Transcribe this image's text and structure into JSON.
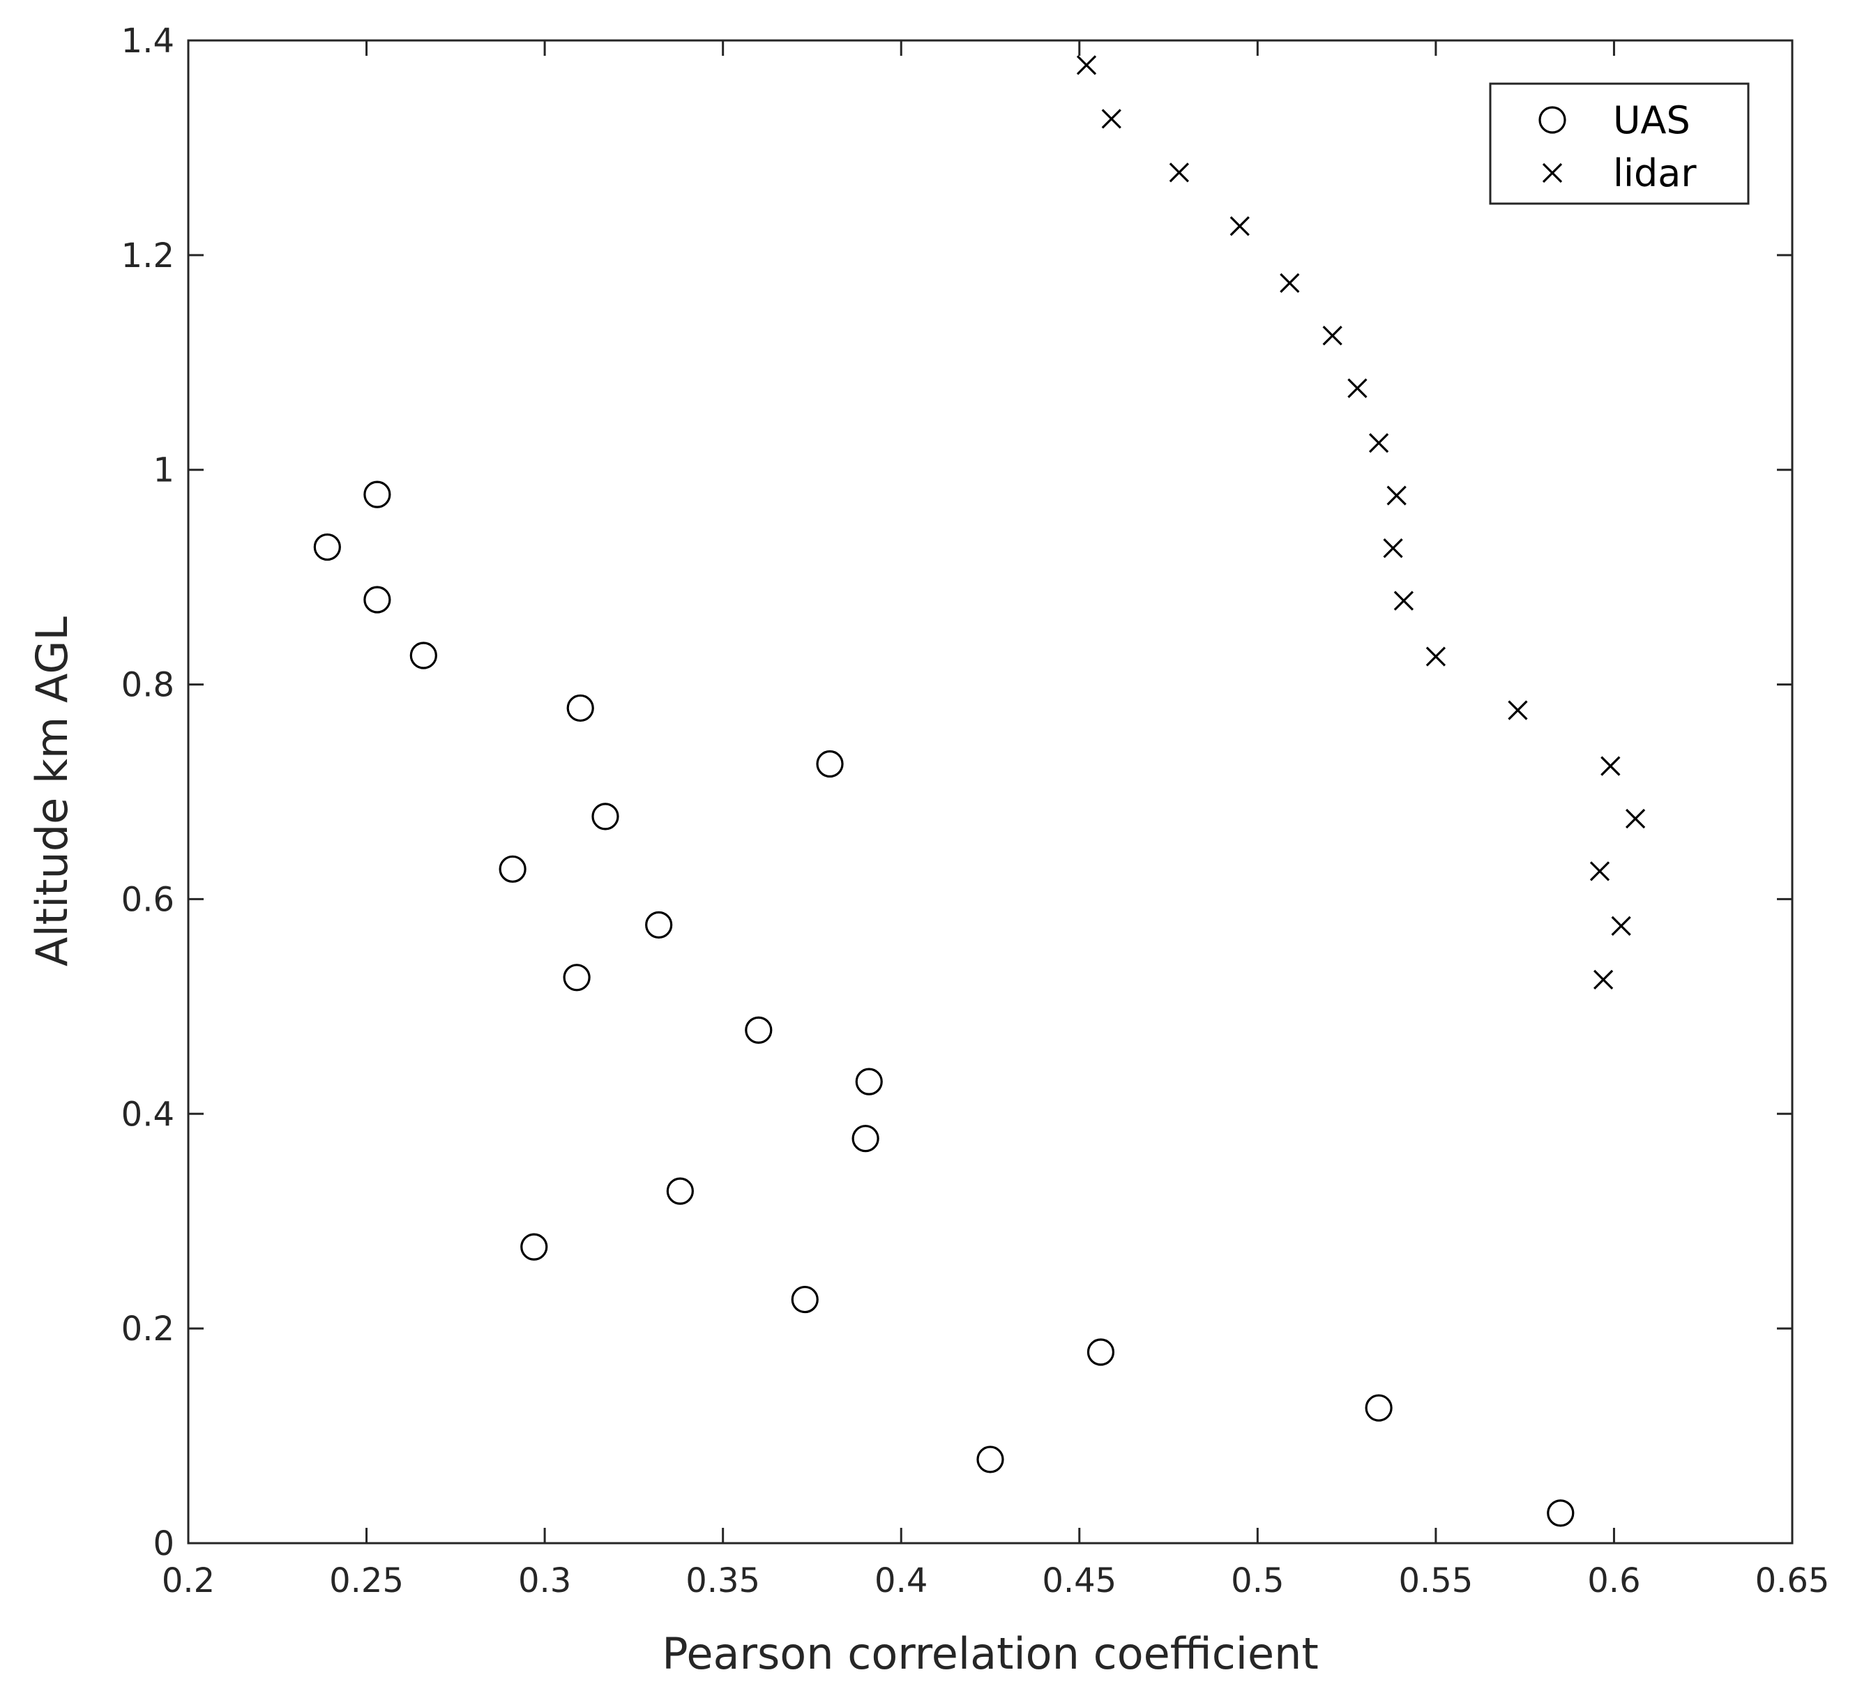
{
  "chart_data": {
    "type": "scatter",
    "xlabel": "Pearson correlation coefficient",
    "ylabel": "Altitude km AGL",
    "xlim": [
      0.2,
      0.65
    ],
    "ylim": [
      0,
      1.4
    ],
    "xticks": [
      0.2,
      0.25,
      0.3,
      0.35,
      0.4,
      0.45,
      0.5,
      0.55,
      0.6,
      0.65
    ],
    "xtick_labels": [
      "0.2",
      "0.25",
      "0.3",
      "0.35",
      "0.4",
      "0.45",
      "0.5",
      "0.55",
      "0.6",
      "0.65"
    ],
    "yticks": [
      0,
      0.2,
      0.4,
      0.6,
      0.8,
      1,
      1.2,
      1.4
    ],
    "ytick_labels": [
      "0",
      "0.2",
      "0.4",
      "0.6",
      "0.8",
      "1",
      "1.2",
      "1.4"
    ],
    "grid": false,
    "legend_position": "top-right",
    "series": [
      {
        "name": "UAS",
        "marker": "circle",
        "x": [
          0.585,
          0.425,
          0.534,
          0.456,
          0.373,
          0.297,
          0.338,
          0.39,
          0.391,
          0.36,
          0.309,
          0.332,
          0.291,
          0.317,
          0.38,
          0.31,
          0.266,
          0.253,
          0.239,
          0.253
        ],
        "y": [
          0.028,
          0.078,
          0.126,
          0.178,
          0.227,
          0.276,
          0.328,
          0.377,
          0.43,
          0.478,
          0.527,
          0.576,
          0.628,
          0.677,
          0.726,
          0.778,
          0.827,
          0.879,
          0.928,
          0.977
        ]
      },
      {
        "name": "lidar",
        "marker": "x",
        "x": [
          0.597,
          0.602,
          0.596,
          0.606,
          0.599,
          0.573,
          0.55,
          0.541,
          0.538,
          0.539,
          0.534,
          0.528,
          0.521,
          0.509,
          0.495,
          0.478,
          0.459,
          0.452
        ],
        "y": [
          0.525,
          0.575,
          0.626,
          0.675,
          0.724,
          0.776,
          0.826,
          0.878,
          0.927,
          0.976,
          1.025,
          1.076,
          1.125,
          1.174,
          1.227,
          1.277,
          1.327,
          1.377
        ]
      }
    ]
  }
}
